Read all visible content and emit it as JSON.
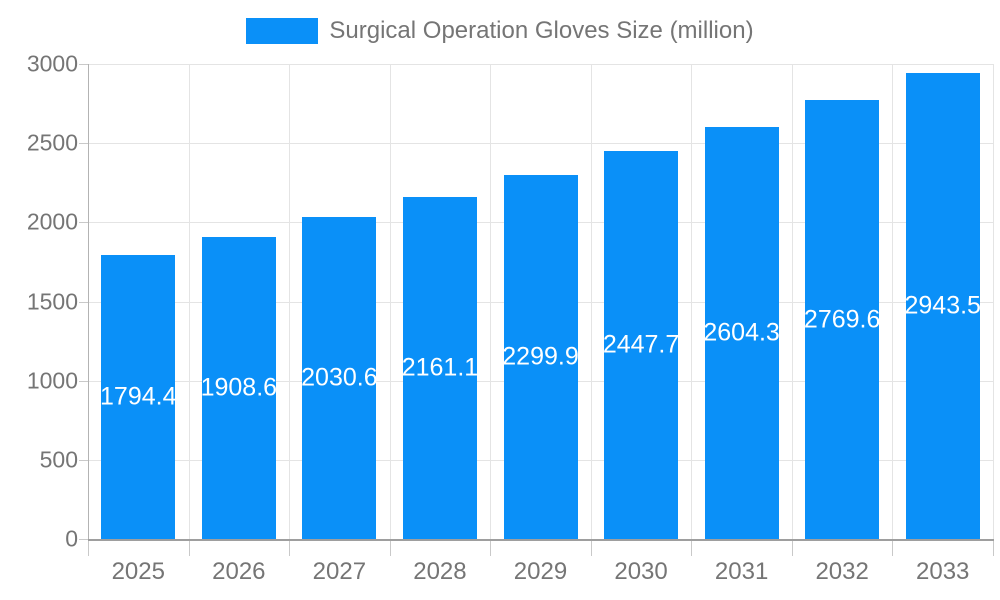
{
  "legend": {
    "label": "Surgical Operation Gloves Size (million)"
  },
  "chart_data": {
    "type": "bar",
    "title": "Surgical Operation Gloves Size (million)",
    "categories": [
      "2025",
      "2026",
      "2027",
      "2028",
      "2029",
      "2030",
      "2031",
      "2032",
      "2033"
    ],
    "values": [
      1794.4,
      1908.6,
      2030.6,
      2161.1,
      2299.9,
      2447.7,
      2604.3,
      2769.6,
      2943.5
    ],
    "xlabel": "",
    "ylabel": "",
    "ylim": [
      0,
      3000
    ],
    "yticks": [
      0,
      500,
      1000,
      1500,
      2000,
      2500,
      3000
    ],
    "grid": true,
    "legend_position": "top",
    "value_labels": "inside-center",
    "colors": {
      "bar": "#0A90F8",
      "value_label": "#ffffff",
      "axis_text": "#757575",
      "grid_line": "#e4e4e4",
      "axis_line": "#9e9e9e",
      "tick_line": "#c9c9c9",
      "background": "#ffffff"
    }
  }
}
